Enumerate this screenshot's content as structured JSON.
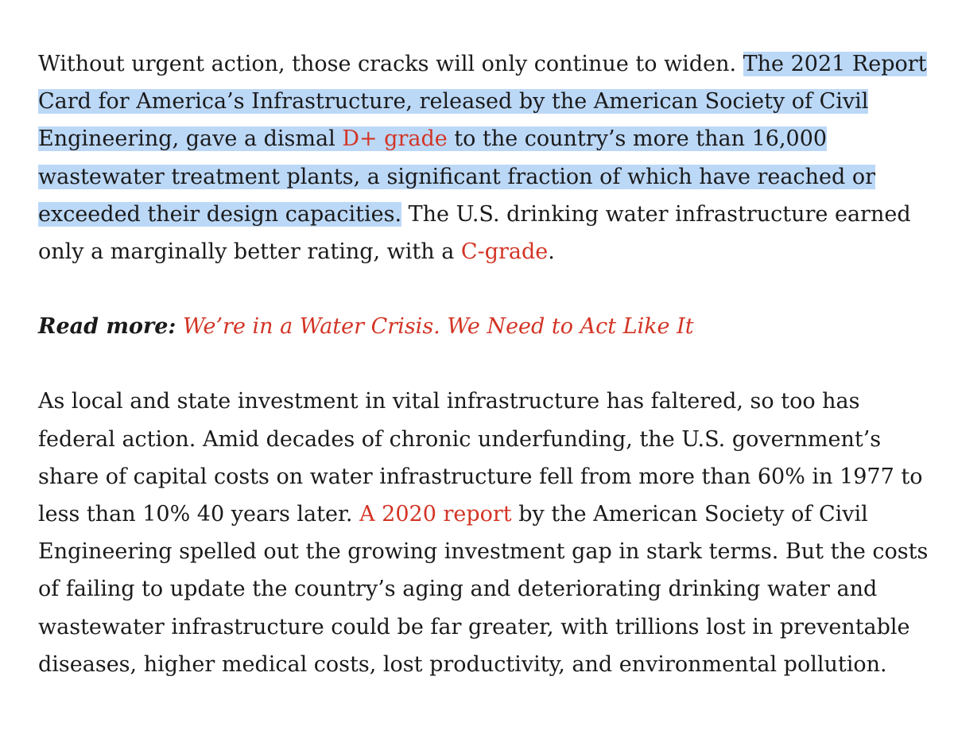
{
  "paragraph1": {
    "intro": "Without urgent action, those cracks will only continue to widen. ",
    "highlight_start": "The 2021 Report Card for America’s Infrastructure, released by the American Society of Civil Engineering, gave a dismal ",
    "link_d_plus": "D+ grade",
    "highlight_end": " to the country’s more than 16,000 wastewater treatment plants, a significant fraction of which have reached or exceeded their design capacities.",
    "after": " The U.S. drinking water infrastructure earned only a marginally better rating, with a ",
    "link_c_minus": "C-grade",
    "end": "."
  },
  "read_more": {
    "label": "Read more:",
    "link": "We’re in a Water Crisis. We Need to Act Like It"
  },
  "paragraph2": {
    "before": "As local and state investment in vital infrastructure has faltered, so too has federal action. Amid decades of chronic underfunding, the U.S. government’s share of capital costs on water infrastructure fell from more than 60% in 1977 to less than 10% 40 years later. ",
    "link_report": "A 2020 report",
    "after": " by the American Society of Civil Engineering spelled out the growing investment gap in stark terms. But the costs of failing to update the country’s aging and deteriorating drinking water and wastewater infrastructure could be far greater, with trillions lost in preventable diseases, higher medical costs, lost productivity, and environmental pollution."
  },
  "colors": {
    "text": "#1a1a1a",
    "link": "#d33425",
    "highlight": "#bcd8f7"
  }
}
